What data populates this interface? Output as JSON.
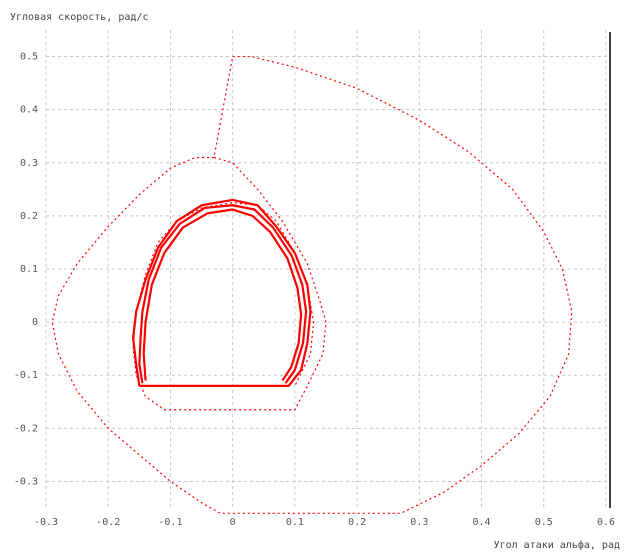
{
  "chart_data": {
    "type": "line",
    "title": "",
    "xlabel": "Угол атаки альфа, рад",
    "ylabel": "Угловая скорость, рад/с",
    "xlim": [
      -0.3,
      0.6
    ],
    "ylim": [
      -0.35,
      0.55
    ],
    "xticks": [
      -0.3,
      -0.2,
      -0.1,
      0,
      0.1,
      0.2,
      0.3,
      0.4,
      0.5,
      0.6
    ],
    "xtick_labels": [
      "-0.3",
      "-0.2",
      "-0.1",
      "0",
      "0.1",
      "0.2",
      "0.3",
      "0.4",
      "0.5",
      "0.6"
    ],
    "yticks": [
      -0.3,
      -0.2,
      -0.1,
      0,
      0.1,
      0.2,
      0.3,
      0.4,
      0.5
    ],
    "ytick_labels": [
      "-0.3",
      "-0.2",
      "-0.1",
      "0",
      "0.1",
      "0.2",
      "0.3",
      "0.4",
      "0.5"
    ],
    "grid": true,
    "color": "#ff0000",
    "series": [
      {
        "style": "dotted",
        "points": [
          [
            0.0,
            0.5
          ],
          [
            0.03,
            0.5
          ],
          [
            0.1,
            0.48
          ],
          [
            0.2,
            0.44
          ],
          [
            0.3,
            0.38
          ],
          [
            0.38,
            0.32
          ],
          [
            0.45,
            0.25
          ],
          [
            0.5,
            0.17
          ],
          [
            0.53,
            0.1
          ],
          [
            0.545,
            0.02
          ],
          [
            0.54,
            -0.06
          ],
          [
            0.51,
            -0.14
          ],
          [
            0.46,
            -0.21
          ],
          [
            0.4,
            -0.27
          ],
          [
            0.34,
            -0.32
          ],
          [
            0.27,
            -0.36
          ],
          [
            0.2,
            -0.36
          ],
          [
            0.1,
            -0.36
          ],
          [
            0.0,
            -0.36
          ],
          [
            -0.02,
            -0.36
          ],
          [
            -0.05,
            -0.34
          ],
          [
            -0.1,
            -0.3
          ],
          [
            -0.15,
            -0.25
          ],
          [
            -0.2,
            -0.2
          ],
          [
            -0.25,
            -0.13
          ],
          [
            -0.28,
            -0.06
          ],
          [
            -0.29,
            0.0
          ],
          [
            -0.28,
            0.05
          ],
          [
            -0.25,
            0.11
          ],
          [
            -0.2,
            0.18
          ],
          [
            -0.15,
            0.24
          ],
          [
            -0.1,
            0.29
          ],
          [
            -0.06,
            0.31
          ],
          [
            -0.03,
            0.31
          ],
          [
            0.0,
            0.5
          ]
        ]
      },
      {
        "style": "dotted",
        "points": [
          [
            -0.03,
            0.31
          ],
          [
            0.0,
            0.3
          ],
          [
            0.04,
            0.25
          ],
          [
            0.08,
            0.19
          ],
          [
            0.12,
            0.11
          ],
          [
            0.14,
            0.04
          ],
          [
            0.15,
            0.0
          ],
          [
            0.145,
            -0.06
          ],
          [
            0.12,
            -0.12
          ],
          [
            0.1,
            -0.165
          ],
          [
            0.0,
            -0.165
          ],
          [
            -0.1,
            -0.165
          ],
          [
            -0.11,
            -0.165
          ],
          [
            -0.14,
            -0.14
          ],
          [
            -0.155,
            -0.1
          ],
          [
            -0.16,
            -0.05
          ],
          [
            -0.155,
            0.02
          ],
          [
            -0.14,
            0.09
          ],
          [
            -0.12,
            0.15
          ],
          [
            -0.09,
            0.19
          ],
          [
            -0.05,
            0.215
          ],
          [
            0.0,
            0.225
          ],
          [
            0.04,
            0.22
          ],
          [
            0.07,
            0.19
          ],
          [
            0.1,
            0.13
          ],
          [
            0.12,
            0.07
          ],
          [
            0.13,
            0.0
          ],
          [
            0.125,
            -0.06
          ],
          [
            0.1,
            -0.12
          ]
        ]
      },
      {
        "style": "solid",
        "points": [
          [
            -0.15,
            -0.12
          ],
          [
            0.09,
            -0.12
          ],
          [
            0.11,
            -0.09
          ],
          [
            0.12,
            -0.04
          ],
          [
            0.125,
            0.02
          ],
          [
            0.12,
            0.07
          ],
          [
            0.1,
            0.13
          ],
          [
            0.07,
            0.18
          ],
          [
            0.04,
            0.22
          ],
          [
            0.0,
            0.23
          ],
          [
            -0.05,
            0.22
          ],
          [
            -0.09,
            0.19
          ],
          [
            -0.12,
            0.14
          ],
          [
            -0.14,
            0.08
          ],
          [
            -0.155,
            0.02
          ],
          [
            -0.16,
            -0.03
          ],
          [
            -0.155,
            -0.08
          ],
          [
            -0.15,
            -0.12
          ]
        ]
      },
      {
        "style": "solid",
        "points": [
          [
            -0.145,
            -0.115
          ],
          [
            -0.15,
            -0.08
          ],
          [
            -0.148,
            -0.03
          ],
          [
            -0.145,
            0.02
          ],
          [
            -0.135,
            0.08
          ],
          [
            -0.115,
            0.14
          ],
          [
            -0.085,
            0.185
          ],
          [
            -0.045,
            0.215
          ],
          [
            0.0,
            0.22
          ],
          [
            0.035,
            0.212
          ],
          [
            0.065,
            0.178
          ],
          [
            0.095,
            0.125
          ],
          [
            0.112,
            0.07
          ],
          [
            0.118,
            0.02
          ],
          [
            0.113,
            -0.04
          ],
          [
            0.1,
            -0.09
          ],
          [
            0.085,
            -0.115
          ]
        ]
      },
      {
        "style": "solid",
        "points": [
          [
            -0.14,
            -0.11
          ],
          [
            -0.143,
            -0.06
          ],
          [
            -0.14,
            0.0
          ],
          [
            -0.13,
            0.07
          ],
          [
            -0.11,
            0.13
          ],
          [
            -0.08,
            0.178
          ],
          [
            -0.04,
            0.205
          ],
          [
            0.0,
            0.212
          ],
          [
            0.032,
            0.2
          ],
          [
            0.06,
            0.17
          ],
          [
            0.088,
            0.12
          ],
          [
            0.104,
            0.065
          ],
          [
            0.11,
            0.015
          ],
          [
            0.106,
            -0.04
          ],
          [
            0.094,
            -0.085
          ],
          [
            0.08,
            -0.11
          ]
        ]
      }
    ]
  }
}
